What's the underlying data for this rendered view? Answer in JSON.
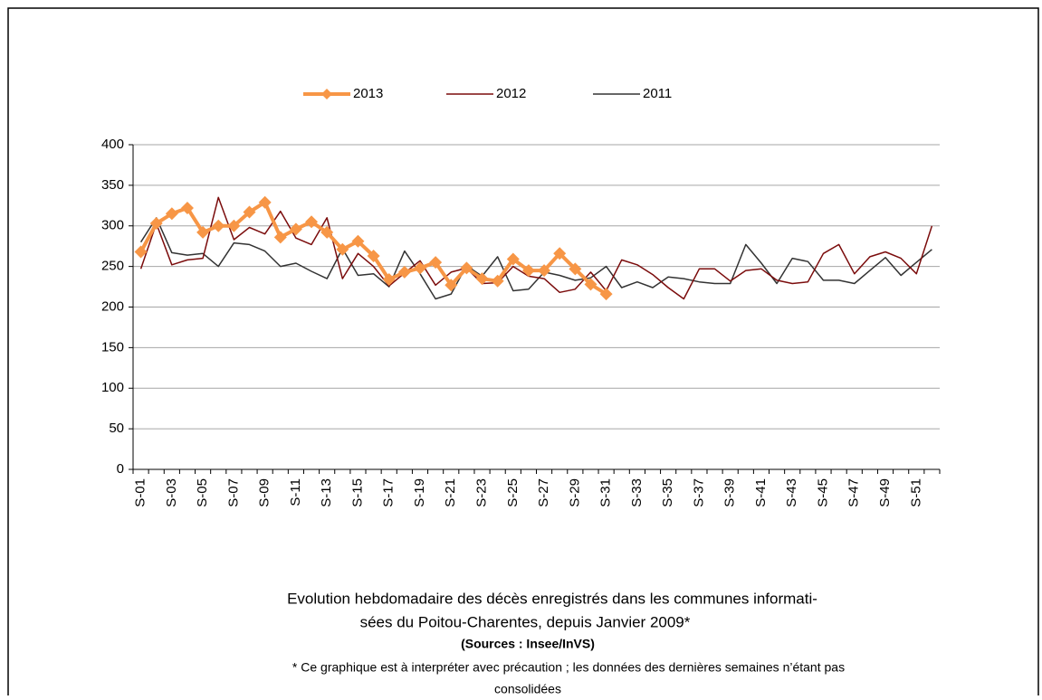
{
  "chart_data": {
    "type": "line",
    "categories": [
      "S-01",
      null,
      "S-03",
      null,
      "S-05",
      null,
      "S-07",
      null,
      "S-09",
      null,
      "S-11",
      null,
      "S-13",
      null,
      "S-15",
      null,
      "S-17",
      null,
      "S-19",
      null,
      "S-21",
      null,
      "S-23",
      null,
      "S-25",
      null,
      "S-27",
      null,
      "S-29",
      null,
      "S-31",
      null,
      "S-33",
      null,
      "S-35",
      null,
      "S-37",
      null,
      "S-39",
      null,
      "S-41",
      null,
      "S-43",
      null,
      "S-45",
      null,
      "S-47",
      null,
      "S-49",
      null,
      "S-51",
      null
    ],
    "series": [
      {
        "name": "2013",
        "color": "#f79646",
        "marker": "diamond",
        "values": [
          268,
          303,
          315,
          322,
          292,
          300,
          300,
          317,
          329,
          286,
          296,
          305,
          292,
          271,
          281,
          263,
          234,
          243,
          248,
          255,
          227,
          248,
          235,
          232,
          259,
          245,
          245,
          266,
          247,
          228,
          216,
          null,
          null,
          null,
          null,
          null,
          null,
          null,
          null,
          null,
          null,
          null,
          null,
          null,
          null,
          null,
          null,
          null,
          null,
          null,
          null,
          null
        ]
      },
      {
        "name": "2012",
        "color": "#7b0c0c",
        "values": [
          247,
          303,
          252,
          258,
          260,
          335,
          283,
          298,
          290,
          318,
          285,
          277,
          310,
          235,
          266,
          250,
          226,
          242,
          257,
          227,
          243,
          248,
          229,
          230,
          250,
          238,
          235,
          218,
          222,
          243,
          220,
          258,
          252,
          240,
          224,
          210,
          247,
          247,
          232,
          245,
          247,
          233,
          229,
          231,
          266,
          277,
          241,
          262,
          268,
          260,
          241,
          300
        ]
      },
      {
        "name": "2011",
        "color": "#333333",
        "values": [
          280,
          310,
          267,
          264,
          266,
          250,
          279,
          277,
          269,
          250,
          254,
          244,
          235,
          272,
          239,
          241,
          225,
          269,
          241,
          210,
          216,
          251,
          238,
          262,
          220,
          222,
          243,
          239,
          233,
          236,
          250,
          224,
          231,
          224,
          237,
          235,
          231,
          229,
          229,
          277,
          254,
          229,
          260,
          256,
          233,
          233,
          229,
          245,
          261,
          239,
          255,
          271
        ]
      }
    ],
    "ylim": [
      0,
      400
    ],
    "yticks": [
      0,
      50,
      100,
      150,
      200,
      250,
      300,
      350,
      400
    ],
    "grid": true,
    "legend": "top",
    "caption_lines": [
      "Evolution hebdomadaire des décès enregistrés dans les communes informati-",
      "sées du Poitou-Charentes, depuis Janvier  2009*"
    ],
    "source": "(Sources : Insee/InVS)",
    "note_lines": [
      "* Ce graphique est à interpréter avec précaution ; les données des dernières semaines n’étant pas",
      "consolidées"
    ]
  }
}
